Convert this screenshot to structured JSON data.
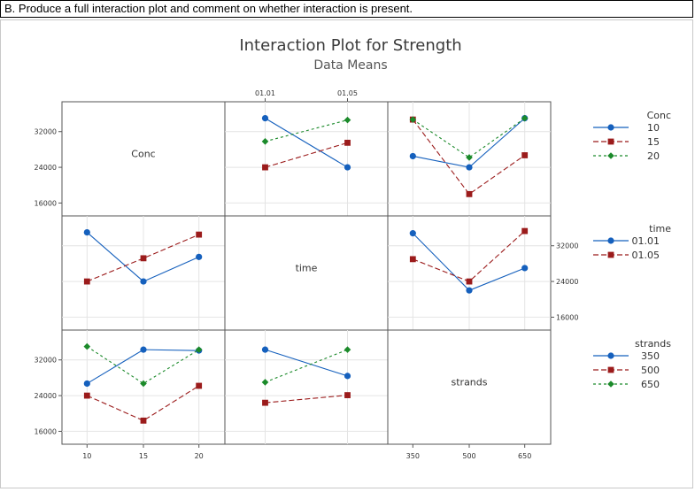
{
  "question": "B. Produce a full interaction plot and comment on whether interaction is present.",
  "chart_data": {
    "type": "line",
    "title": "Interaction Plot for Strength",
    "subtitle": "Data Means",
    "factors": [
      {
        "name": "Conc",
        "levels": [
          "10",
          "15",
          "20"
        ]
      },
      {
        "name": "time",
        "levels": [
          "01.01",
          "01.05"
        ]
      },
      {
        "name": "strands",
        "levels": [
          "350",
          "500",
          "650"
        ]
      }
    ],
    "y_ticks": [
      "16000",
      "24000",
      "32000"
    ],
    "ylim": [
      14500,
      37300
    ],
    "series_colors": [
      "#1560bd",
      "#9b1b1b",
      "#1b8a2a"
    ],
    "legends": [
      {
        "title": "Conc",
        "entries": [
          "10",
          "15",
          "20"
        ]
      },
      {
        "title": "time",
        "entries": [
          "01.01",
          "01.05"
        ]
      },
      {
        "title": "strands",
        "entries": [
          "350",
          "500",
          "650"
        ]
      }
    ],
    "panels": [
      {
        "row": 0,
        "col": 1,
        "x_factor": "time",
        "trace_factor": "Conc",
        "series": [
          {
            "name": "10",
            "values": [
              35000,
              24000
            ]
          },
          {
            "name": "15",
            "values": [
              24000,
              29500
            ]
          },
          {
            "name": "20",
            "values": [
              29800,
              34600
            ]
          }
        ]
      },
      {
        "row": 0,
        "col": 2,
        "x_factor": "strands",
        "trace_factor": "Conc",
        "series": [
          {
            "name": "10",
            "values": [
              26500,
              24000,
              35000
            ]
          },
          {
            "name": "15",
            "values": [
              34700,
              18000,
              26700
            ]
          },
          {
            "name": "20",
            "values": [
              34700,
              26200,
              35000
            ]
          }
        ]
      },
      {
        "row": 1,
        "col": 0,
        "x_factor": "Conc",
        "trace_factor": "time",
        "series": [
          {
            "name": "01.01",
            "values": [
              35000,
              24000,
              29500
            ]
          },
          {
            "name": "01.05",
            "values": [
              24000,
              29200,
              34500
            ]
          }
        ]
      },
      {
        "row": 1,
        "col": 2,
        "x_factor": "strands",
        "trace_factor": "time",
        "series": [
          {
            "name": "01.01",
            "values": [
              34800,
              22000,
              27000
            ]
          },
          {
            "name": "01.05",
            "values": [
              29000,
              24000,
              35300
            ]
          }
        ]
      },
      {
        "row": 2,
        "col": 0,
        "x_factor": "Conc",
        "trace_factor": "strands",
        "series": [
          {
            "name": "350",
            "values": [
              26700,
              34300,
              34100
            ]
          },
          {
            "name": "500",
            "values": [
              24000,
              18400,
              26200
            ]
          },
          {
            "name": "650",
            "values": [
              35000,
              26700,
              34300
            ]
          }
        ]
      },
      {
        "row": 2,
        "col": 1,
        "x_factor": "time",
        "trace_factor": "strands",
        "series": [
          {
            "name": "350",
            "values": [
              34300,
              28400
            ]
          },
          {
            "name": "500",
            "values": [
              22400,
              24100
            ]
          },
          {
            "name": "650",
            "values": [
              27000,
              34300
            ]
          }
        ]
      }
    ]
  }
}
